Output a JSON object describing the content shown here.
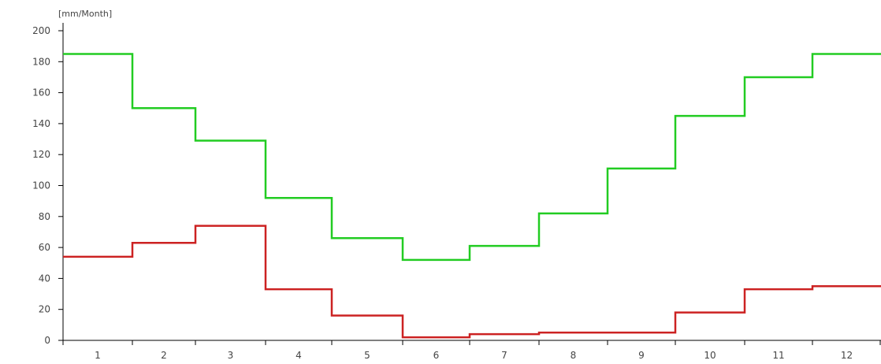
{
  "chart_data": {
    "type": "line",
    "step": true,
    "title": "",
    "xlabel": "",
    "ylabel": "",
    "unit_label": "[mm/Month]",
    "categories": [
      "1",
      "2",
      "3",
      "4",
      "5",
      "6",
      "7",
      "8",
      "9",
      "10",
      "11",
      "12"
    ],
    "y_ticks": [
      "0",
      "20",
      "40",
      "60",
      "80",
      "100",
      "120",
      "140",
      "160",
      "180",
      "200"
    ],
    "ylim": [
      0,
      200
    ],
    "grid": false,
    "legend": "none",
    "series": [
      {
        "color": "#22cc22",
        "values": [
          185,
          150,
          129,
          92,
          66,
          52,
          61,
          82,
          111,
          145,
          170,
          185
        ]
      },
      {
        "color": "#cc2222",
        "values": [
          54,
          63,
          74,
          33,
          16,
          2,
          4,
          5,
          5,
          18,
          33,
          35
        ]
      }
    ]
  }
}
